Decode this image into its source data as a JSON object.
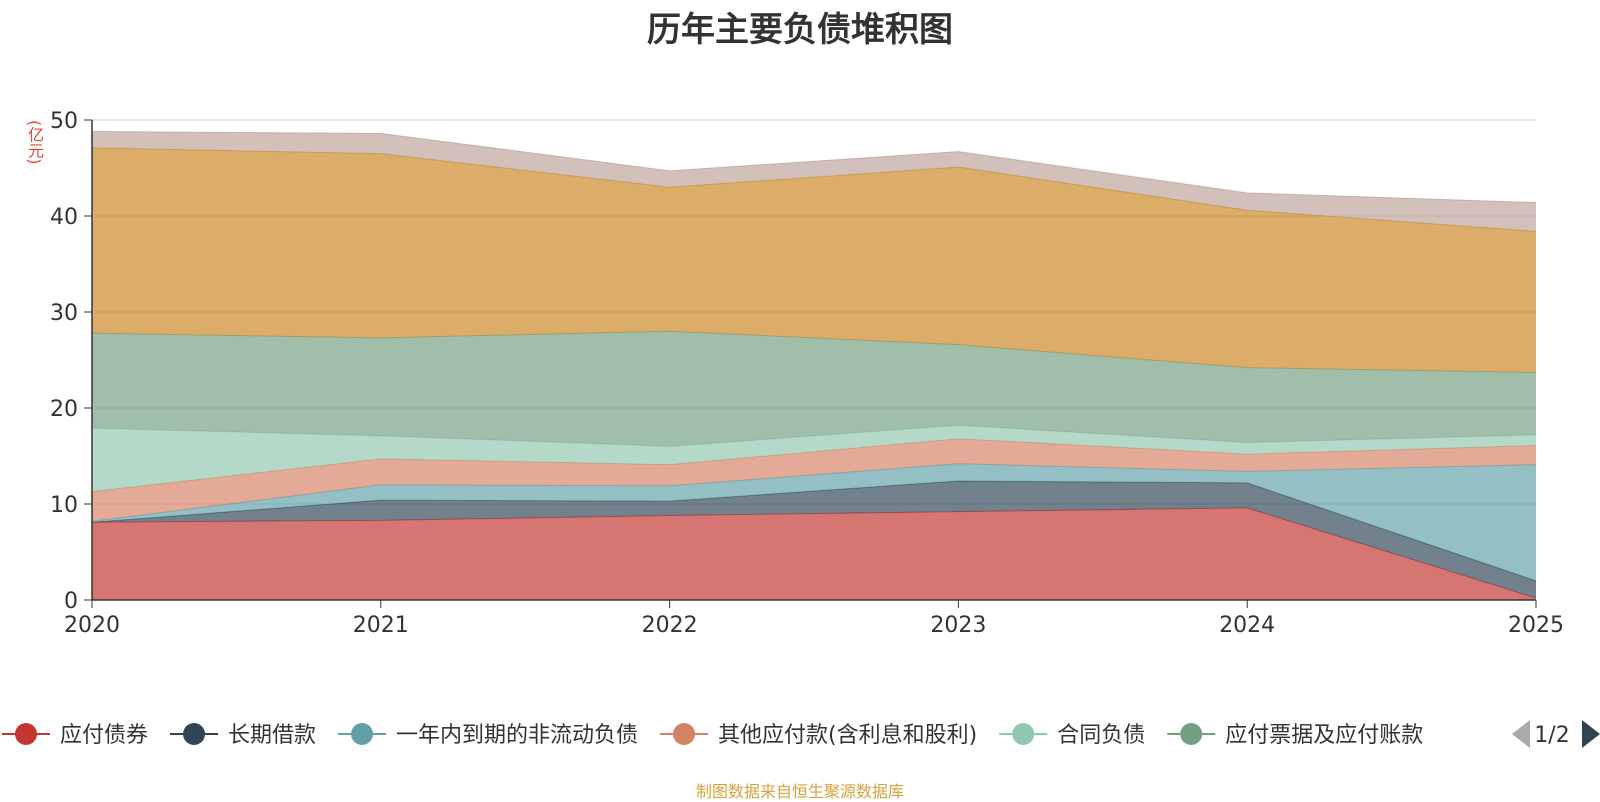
{
  "title": "历年主要负债堆积图",
  "unit": "(亿元)",
  "source": "制图数据来自恒生聚源数据库",
  "legend_page": "1/2",
  "colors": {
    "axis": "#333333",
    "grid": "#cccccc",
    "nav_inactive": "#aaaaaa",
    "nav_active": "#2f4554"
  },
  "chart_data": {
    "type": "area",
    "stacked": true,
    "x": [
      "2020",
      "2021",
      "2022",
      "2023",
      "2024",
      "2025"
    ],
    "ylim": [
      0,
      50
    ],
    "yticks": [
      "0",
      "10",
      "20",
      "30",
      "40",
      "50"
    ],
    "grid": true,
    "legend_position": "bottom",
    "series": [
      {
        "name": "应付债券",
        "color": "#c23531",
        "values": [
          8.1,
          8.3,
          8.8,
          9.2,
          9.6,
          0.2
        ]
      },
      {
        "name": "长期借款",
        "color": "#2f4554",
        "values": [
          0.0,
          2.1,
          1.5,
          3.2,
          2.6,
          1.8
        ]
      },
      {
        "name": "一年内到期的非流动负债",
        "color": "#61a0a8",
        "values": [
          0.1,
          1.6,
          1.6,
          1.8,
          1.2,
          12.1
        ]
      },
      {
        "name": "其他应付款(含利息和股利)",
        "color": "#d48265",
        "values": [
          3.1,
          2.7,
          2.2,
          2.6,
          1.8,
          2.0
        ]
      },
      {
        "name": "合同负债",
        "color": "#91c7ae",
        "values": [
          6.6,
          2.4,
          1.9,
          1.4,
          1.2,
          1.1
        ]
      },
      {
        "name": "应付票据及应付账款",
        "color": "#749f83",
        "values": [
          9.9,
          10.2,
          12.0,
          8.4,
          7.8,
          6.5
        ]
      },
      {
        "name": "",
        "color": "#ca8622",
        "values": [
          19.3,
          19.2,
          15.0,
          18.5,
          16.4,
          14.7
        ]
      },
      {
        "name": "",
        "color": "#bda29a",
        "values": [
          1.7,
          2.1,
          1.7,
          1.6,
          1.8,
          3.0
        ]
      }
    ]
  }
}
